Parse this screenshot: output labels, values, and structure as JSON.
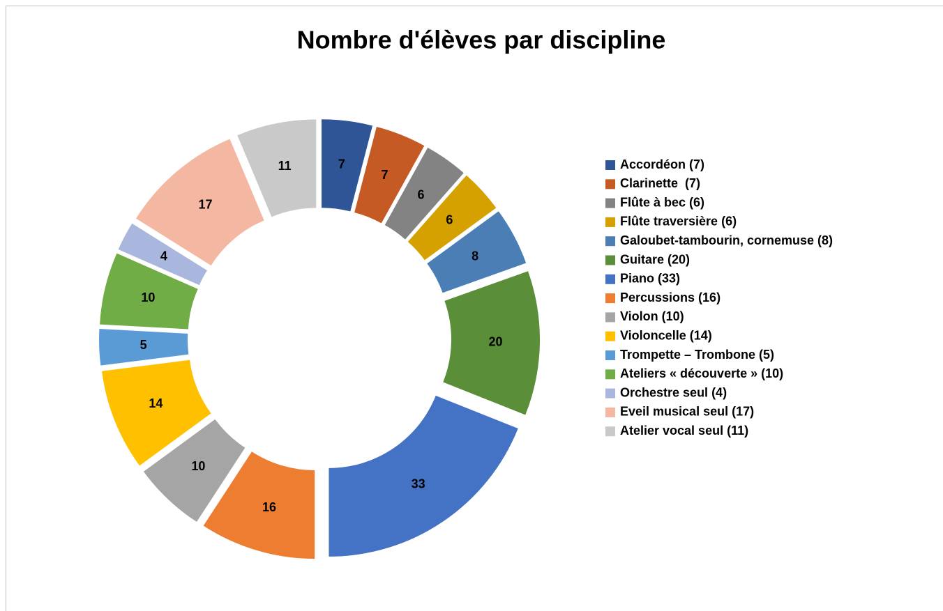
{
  "chart_data": {
    "type": "donut",
    "title": "Nombre d'élèves par discipline",
    "categories": [
      "Accordéon (7)",
      "Clarinette  (7)",
      "Flûte à bec (6)",
      "Flûte traversière (6)",
      "Galoubet-tambourin, cornemuse (8)",
      "Guitare (20)",
      "Piano (33)",
      "Percussions (16)",
      "Violon (10)",
      "Violoncelle (14)",
      "Trompette – Trombone (5)",
      "Ateliers « découverte » (10)",
      "Orchestre seul (4)",
      "Eveil musical seul (17)",
      "Atelier vocal seul (11)"
    ],
    "values": [
      7,
      7,
      6,
      6,
      8,
      20,
      33,
      16,
      10,
      14,
      5,
      10,
      4,
      17,
      11
    ],
    "colors": [
      "#2f5597",
      "#c55a24",
      "#838383",
      "#d4a100",
      "#4a7eb4",
      "#5a8e38",
      "#4472c4",
      "#ed7d31",
      "#a5a5a5",
      "#ffc000",
      "#5b9bd5",
      "#70ad47",
      "#a9b7de",
      "#f4b8a2",
      "#c9c9c9"
    ],
    "legend": "right"
  }
}
